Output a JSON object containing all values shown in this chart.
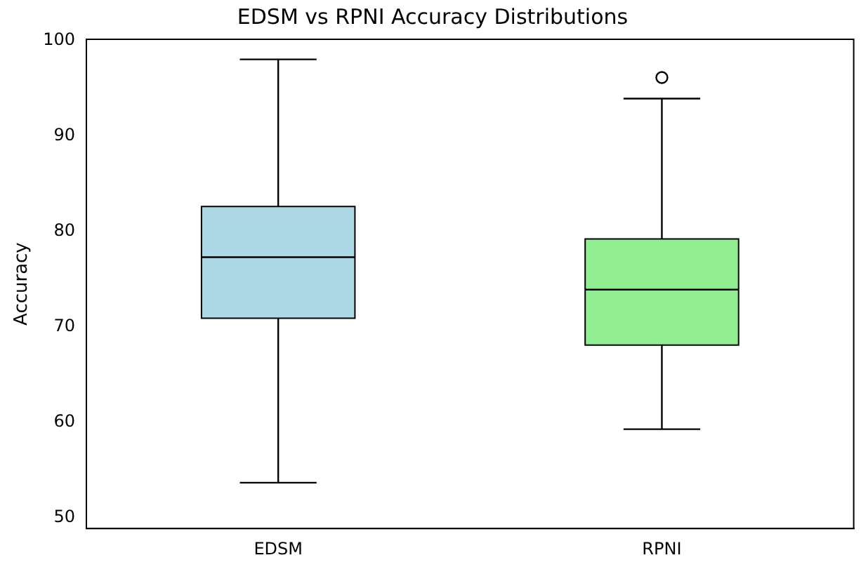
{
  "chart_data": {
    "type": "box",
    "title": "EDSM vs RPNI Accuracy Distributions",
    "ylabel": "Accuracy",
    "categories": [
      "EDSM",
      "RPNI"
    ],
    "boxes": [
      {
        "low": 53.7,
        "q1": 70.9,
        "median": 77.3,
        "q3": 82.6,
        "high": 98.0
      },
      {
        "low": 59.3,
        "q1": 68.1,
        "median": 73.9,
        "q3": 79.2,
        "high": 93.9,
        "outliers": [
          96.1
        ]
      }
    ],
    "colors": [
      "#add8e6",
      "#90ee90"
    ],
    "ylim": [
      48.9,
      100.1
    ],
    "yticks": [
      50,
      60,
      70,
      80,
      90,
      100
    ],
    "grid": false,
    "legend": false
  }
}
